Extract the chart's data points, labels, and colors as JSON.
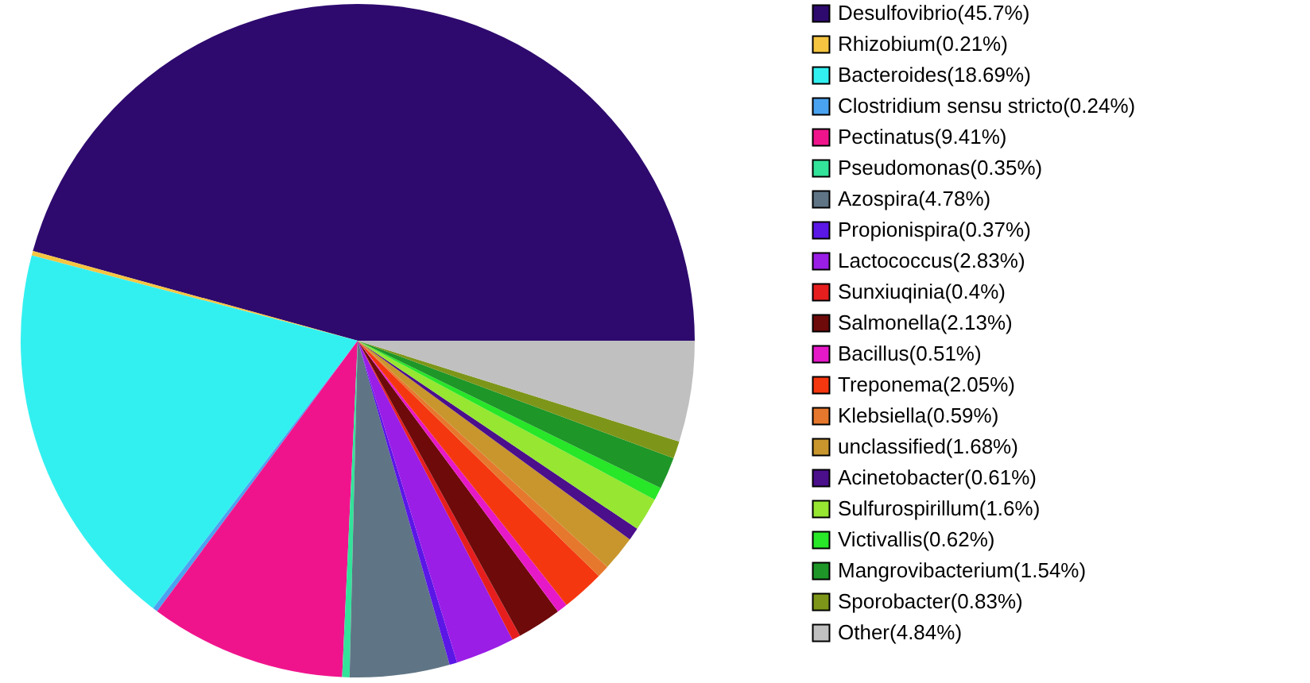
{
  "chart_data": {
    "type": "pie",
    "categories": [
      "Desulfovibrio(45.7%)",
      "Rhizobium(0.21%)",
      "Bacteroides(18.69%)",
      "Clostridium sensu stricto(0.24%)",
      "Pectinatus(9.41%)",
      "Pseudomonas(0.35%)",
      "Azospira(4.78%)",
      "Propionispira(0.37%)",
      "Lactococcus(2.83%)",
      "Sunxiuqinia(0.4%)",
      "Salmonella(2.13%)",
      "Bacillus(0.51%)",
      "Treponema(2.05%)",
      "Klebsiella(0.59%)",
      "unclassified(1.68%)",
      "Acinetobacter(0.61%)",
      "Sulfurospirillum(1.6%)",
      "Victivallis(0.62%)",
      "Mangrovibacterium(1.54%)",
      "Sporobacter(0.83%)",
      "Other(4.84%)"
    ],
    "values": [
      45.7,
      0.21,
      18.69,
      0.24,
      9.41,
      0.35,
      4.78,
      0.37,
      2.83,
      0.4,
      2.13,
      0.51,
      2.05,
      0.59,
      1.68,
      0.61,
      1.6,
      0.62,
      1.54,
      0.83,
      4.84
    ],
    "colors": [
      "#2e0a6e",
      "#f5c542",
      "#33f0f0",
      "#4aa3f0",
      "#f0148c",
      "#33e39a",
      "#5f7585",
      "#5a17e6",
      "#9a1ee6",
      "#e61e1e",
      "#6e0a0a",
      "#e619c8",
      "#f5370f",
      "#e6782d",
      "#c8962d",
      "#4b0f8c",
      "#96e632",
      "#28e628",
      "#1e9628",
      "#7d9619",
      "#c0c0c0"
    ],
    "legend": "right"
  }
}
